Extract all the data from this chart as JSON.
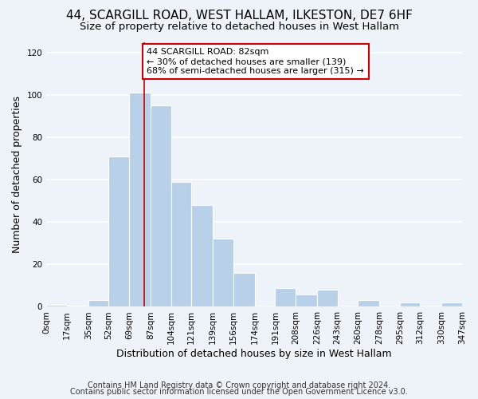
{
  "title": "44, SCARGILL ROAD, WEST HALLAM, ILKESTON, DE7 6HF",
  "subtitle": "Size of property relative to detached houses in West Hallam",
  "xlabel": "Distribution of detached houses by size in West Hallam",
  "ylabel": "Number of detached properties",
  "footer_line1": "Contains HM Land Registry data © Crown copyright and database right 2024.",
  "footer_line2": "Contains public sector information licensed under the Open Government Licence v3.0.",
  "bar_edges": [
    0,
    17,
    35,
    52,
    69,
    87,
    104,
    121,
    139,
    156,
    174,
    191,
    208,
    226,
    243,
    260,
    278,
    295,
    312,
    330,
    347
  ],
  "bar_heights": [
    1,
    0,
    3,
    71,
    101,
    95,
    59,
    48,
    32,
    16,
    0,
    9,
    6,
    8,
    0,
    3,
    0,
    2,
    0,
    2
  ],
  "bar_color": "#b8d0e8",
  "bar_edge_color": "#ffffff",
  "property_line_x": 82,
  "property_line_color": "#cc0000",
  "annotation_text": "44 SCARGILL ROAD: 82sqm\n← 30% of detached houses are smaller (139)\n68% of semi-detached houses are larger (315) →",
  "annotation_box_color": "#ffffff",
  "annotation_box_edge_color": "#cc0000",
  "tick_labels": [
    "0sqm",
    "17sqm",
    "35sqm",
    "52sqm",
    "69sqm",
    "87sqm",
    "104sqm",
    "121sqm",
    "139sqm",
    "156sqm",
    "174sqm",
    "191sqm",
    "208sqm",
    "226sqm",
    "243sqm",
    "260sqm",
    "278sqm",
    "295sqm",
    "312sqm",
    "330sqm",
    "347sqm"
  ],
  "ylim": [
    0,
    125
  ],
  "yticks": [
    0,
    20,
    40,
    60,
    80,
    100,
    120
  ],
  "background_color": "#eef2f9",
  "grid_color": "#ffffff",
  "title_fontsize": 11,
  "subtitle_fontsize": 9.5,
  "axis_label_fontsize": 9,
  "tick_fontsize": 7.5,
  "footer_fontsize": 7,
  "annotation_fontsize": 8
}
